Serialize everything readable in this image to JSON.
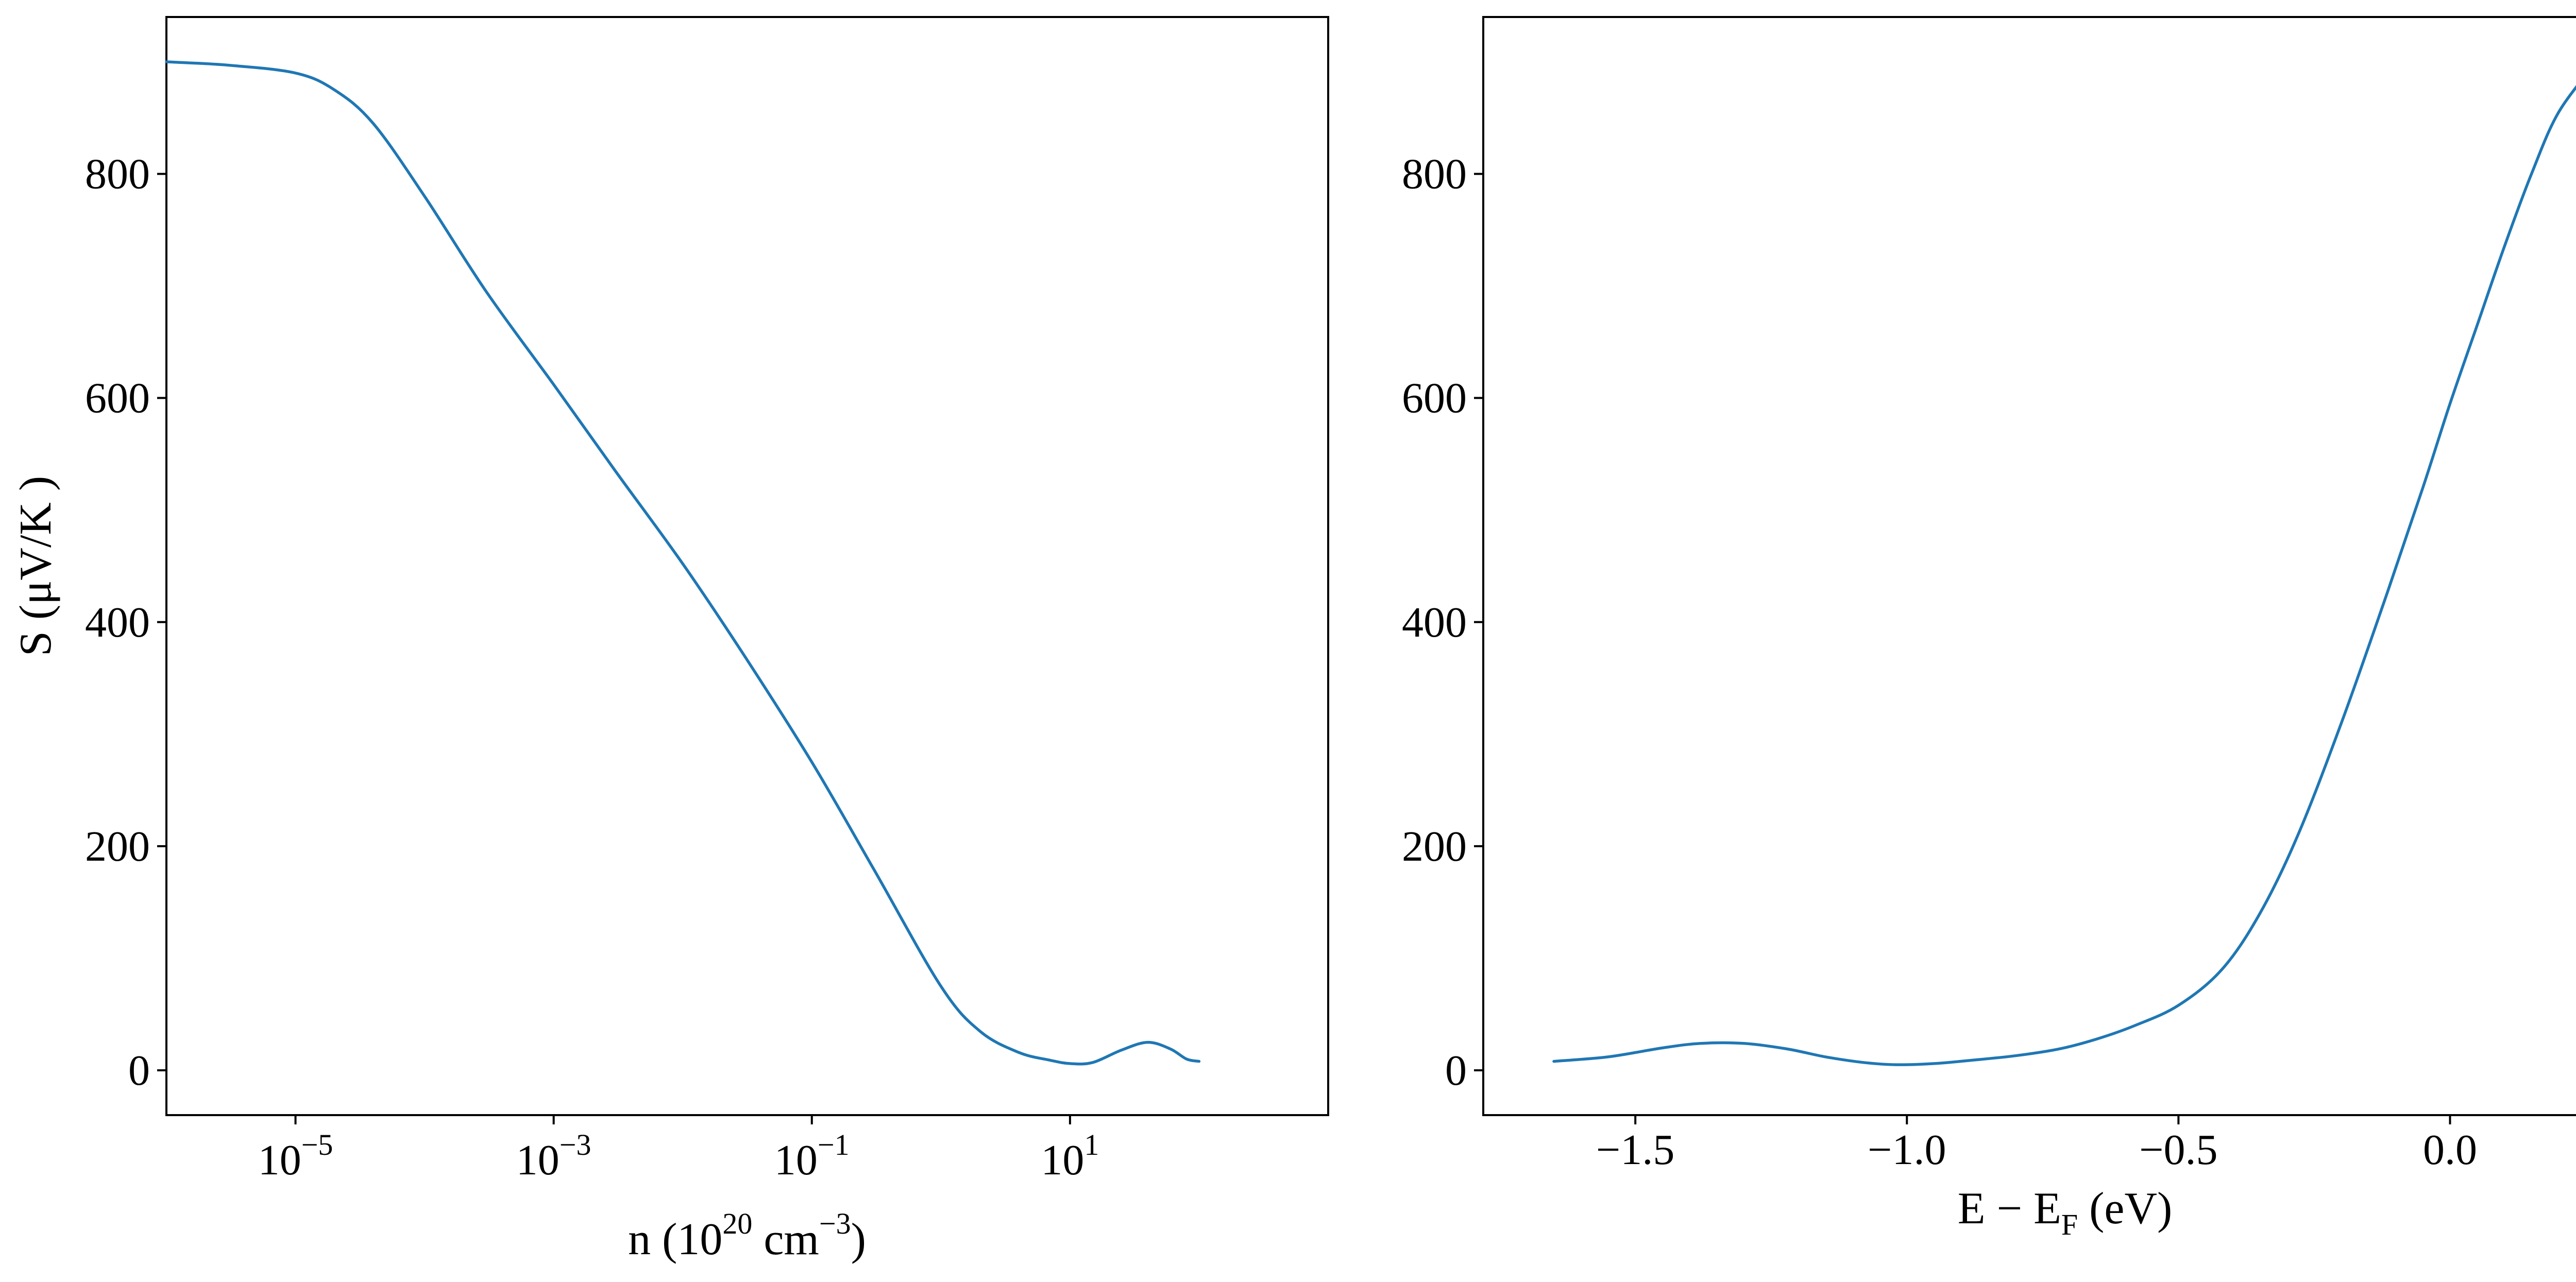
{
  "figure": {
    "line_color": "#1f77b4"
  },
  "chart_data": [
    {
      "type": "line",
      "xlabel": {
        "main": "n (10",
        "sup1": "20",
        "mid": " cm",
        "sup2": "−3",
        "end": ")"
      },
      "ylabel": "S (μV/K )",
      "xscale": "log",
      "xlim": [
        1e-06,
        1000
      ],
      "ylim": [
        -40,
        940
      ],
      "yticks": [
        0,
        200,
        400,
        600,
        800
      ],
      "ytick_labels": [
        "0",
        "200",
        "400",
        "600",
        "800"
      ],
      "xticks": [
        {
          "value": 1e-05,
          "base": "10",
          "exp": "−5"
        },
        {
          "value": 0.001,
          "base": "10",
          "exp": "−3"
        },
        {
          "value": 0.1,
          "base": "10",
          "exp": "−1"
        },
        {
          "value": 10,
          "base": "10",
          "exp": "1"
        }
      ],
      "series": [
        {
          "x": [
            1e-06,
            3e-06,
            1e-05,
            2e-05,
            4e-05,
            0.0001,
            0.0003,
            0.001,
            0.003,
            0.01,
            0.03,
            0.1,
            0.3,
            1,
            2,
            4,
            7,
            10,
            15,
            25,
            40,
            60,
            80,
            100
          ],
          "y": [
            900,
            897,
            890,
            875,
            845,
            780,
            695,
            612,
            535,
            452,
            370,
            275,
            180,
            75,
            35,
            16,
            9,
            6,
            7,
            18,
            25,
            19,
            10,
            8
          ]
        }
      ]
    },
    {
      "type": "line",
      "xlabel": {
        "main": "E − E",
        "sub": "F",
        "end": " (eV)"
      },
      "ylabel": "",
      "xlim": [
        -1.78,
        0.36
      ],
      "ylim": [
        -40,
        940
      ],
      "yticks": [
        0,
        200,
        400,
        600,
        800
      ],
      "ytick_labels": [
        "0",
        "200",
        "400",
        "600",
        "800"
      ],
      "xticks": [
        -1.5,
        -1.0,
        -0.5,
        0.0
      ],
      "xtick_labels": [
        "−1.5",
        "−1.0",
        "−0.5",
        "0.0"
      ],
      "series": [
        {
          "x": [
            -1.65,
            -1.55,
            -1.45,
            -1.38,
            -1.3,
            -1.22,
            -1.15,
            -1.08,
            -1.02,
            -0.95,
            -0.88,
            -0.8,
            -0.72,
            -0.65,
            -0.58,
            -0.5,
            -0.42,
            -0.35,
            -0.28,
            -0.2,
            -0.12,
            -0.05,
            0.0,
            0.05,
            0.1,
            0.15,
            0.2,
            0.27
          ],
          "y": [
            8,
            12,
            20,
            24,
            24,
            19,
            12,
            7,
            5,
            6,
            9,
            13,
            19,
            28,
            40,
            58,
            90,
            140,
            210,
            310,
            420,
            520,
            595,
            665,
            735,
            800,
            855,
            900
          ]
        }
      ]
    }
  ]
}
